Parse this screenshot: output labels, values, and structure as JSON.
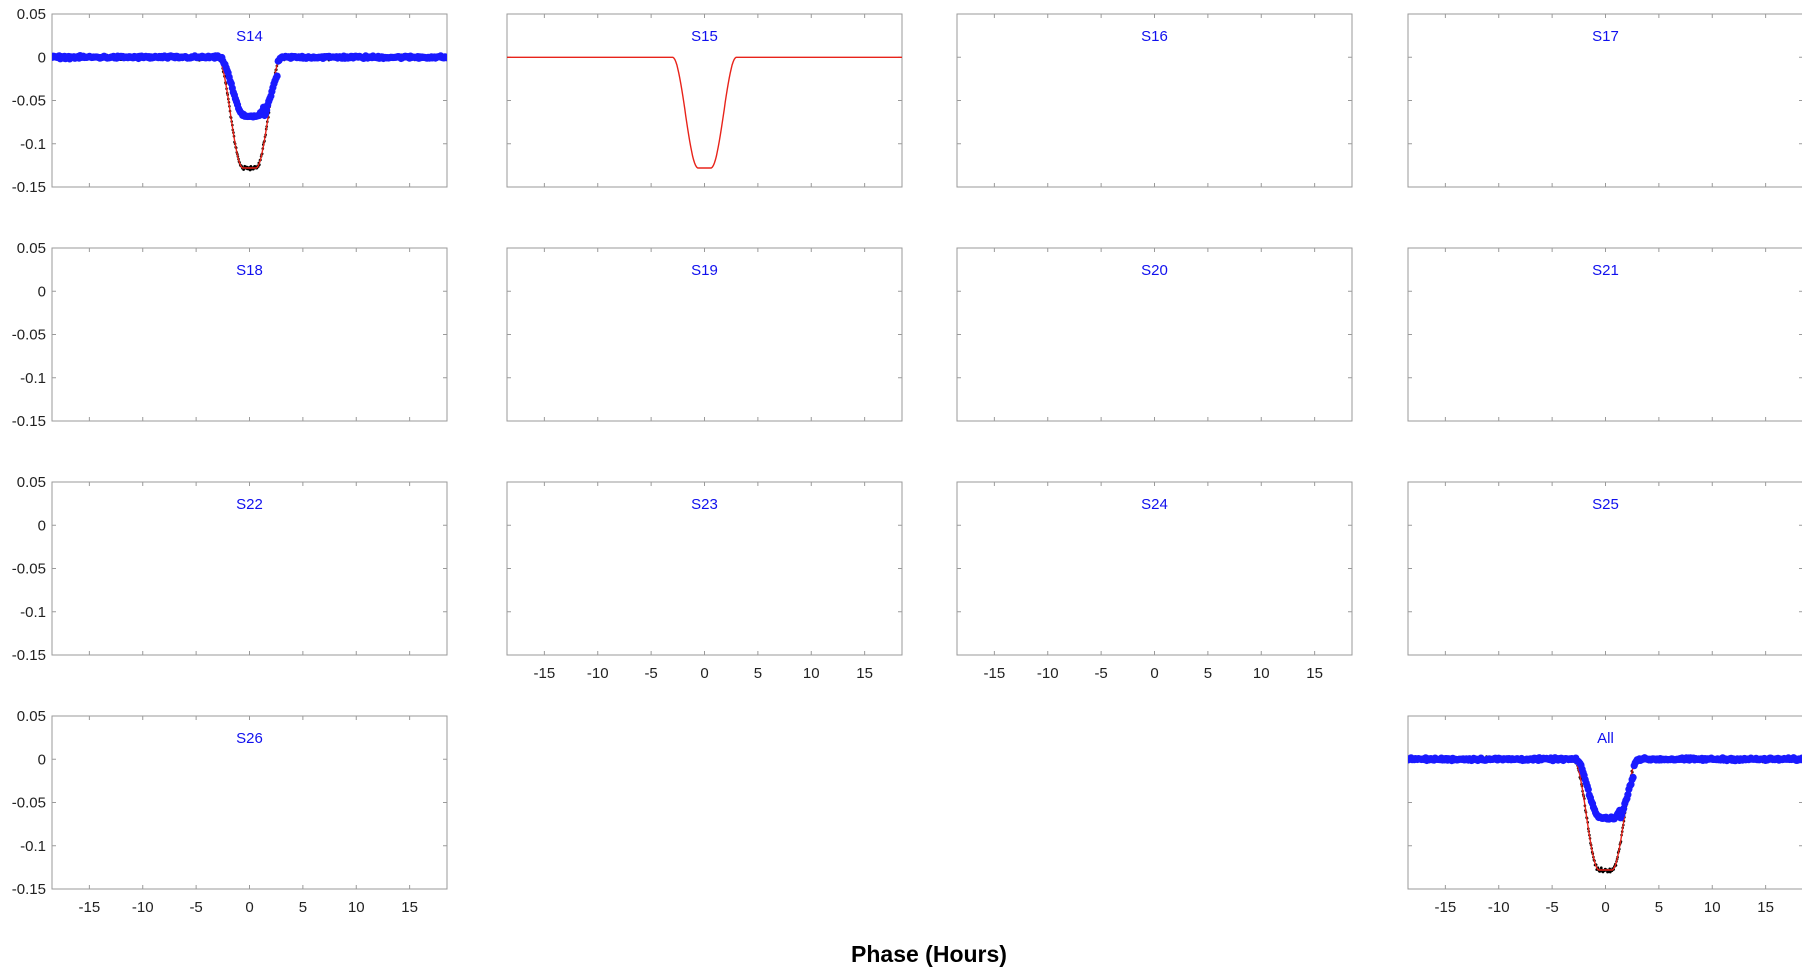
{
  "chart_data": {
    "type": "scatter",
    "xlabel": "Phase (Hours)",
    "ylabel": "",
    "xlim": [
      -18.5,
      18.5
    ],
    "ylim": [
      -0.15,
      0.05
    ],
    "x_ticks": [
      "-15",
      "-10",
      "-5",
      "0",
      "5",
      "10",
      "15"
    ],
    "y_ticks": [
      "0.05",
      "0",
      "-0.05",
      "-0.1",
      "-0.15"
    ],
    "transit": {
      "depth": 0.128,
      "binned_depth": 0.068,
      "total_duration_hours": 6.0,
      "flat_bottom_hours": 1.2
    },
    "panels": [
      {
        "title": "S14",
        "has_data": true,
        "has_model": true,
        "x_labels": false,
        "y_labels": true
      },
      {
        "title": "S15",
        "has_data": false,
        "has_model": true,
        "x_labels": false,
        "y_labels": false
      },
      {
        "title": "S16",
        "has_data": false,
        "has_model": false,
        "x_labels": false,
        "y_labels": false
      },
      {
        "title": "S17",
        "has_data": false,
        "has_model": false,
        "x_labels": false,
        "y_labels": false
      },
      {
        "title": "S18",
        "has_data": false,
        "has_model": false,
        "x_labels": false,
        "y_labels": true
      },
      {
        "title": "S19",
        "has_data": false,
        "has_model": false,
        "x_labels": false,
        "y_labels": false
      },
      {
        "title": "S20",
        "has_data": false,
        "has_model": false,
        "x_labels": false,
        "y_labels": false
      },
      {
        "title": "S21",
        "has_data": false,
        "has_model": false,
        "x_labels": false,
        "y_labels": false
      },
      {
        "title": "S22",
        "has_data": false,
        "has_model": false,
        "x_labels": false,
        "y_labels": true
      },
      {
        "title": "S23",
        "has_data": false,
        "has_model": false,
        "x_labels": true,
        "y_labels": false
      },
      {
        "title": "S24",
        "has_data": false,
        "has_model": false,
        "x_labels": true,
        "y_labels": false
      },
      {
        "title": "S25",
        "has_data": false,
        "has_model": false,
        "x_labels": false,
        "y_labels": false
      },
      {
        "title": "S26",
        "has_data": false,
        "has_model": false,
        "x_labels": true,
        "y_labels": true
      },
      {
        "title": "All",
        "has_data": true,
        "has_model": true,
        "x_labels": true,
        "y_labels": false
      }
    ],
    "colors": {
      "data_points": "#000000",
      "binned_points": "#1a1aff",
      "model_line": "#e8231a",
      "panel_title": "#1010ee"
    }
  }
}
